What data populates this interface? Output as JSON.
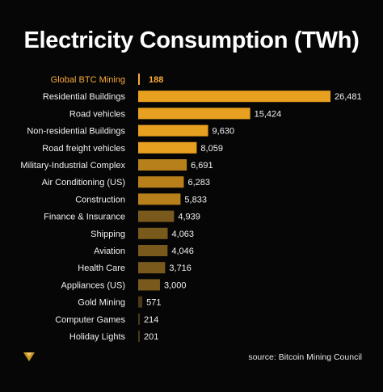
{
  "chart_data": {
    "type": "bar",
    "orientation": "horizontal",
    "title": "Electricity Consumption (TWh)",
    "categories": [
      "Global BTC Mining",
      "Residential Buildings",
      "Road vehicles",
      "Non-residential Buildings",
      "Road freight vehicles",
      "Military-Industrial Complex",
      "Air Conditioning (US)",
      "Construction",
      "Finance & Insurance",
      "Shipping",
      "Aviation",
      "Health Care",
      "Appliances (US)",
      "Gold Mining",
      "Computer Games",
      "Holiday Lights"
    ],
    "values": [
      188,
      26481,
      15424,
      9630,
      8059,
      6691,
      6283,
      5833,
      4939,
      4063,
      4046,
      3716,
      3000,
      571,
      214,
      201
    ],
    "value_labels": [
      "188",
      "26,481",
      "15,424",
      "9,630",
      "8,059",
      "6,691",
      "6,283",
      "5,833",
      "4,939",
      "4,063",
      "4,046",
      "3,716",
      "3,000",
      "571",
      "214",
      "201"
    ],
    "xlim": [
      0,
      26481
    ],
    "grid": false,
    "highlight_category": "Global BTC Mining",
    "colors": {
      "highlight": "#f7a93a",
      "bar_bright": "#e8a020",
      "bar_mid": "#b8801a",
      "bar_dark": "#7a5a1c",
      "bar_darkest": "#4a3a1a",
      "background": "#060606"
    }
  },
  "source": "source: Bitcoin Mining Council",
  "logo_icon": "diamond-logo-icon"
}
